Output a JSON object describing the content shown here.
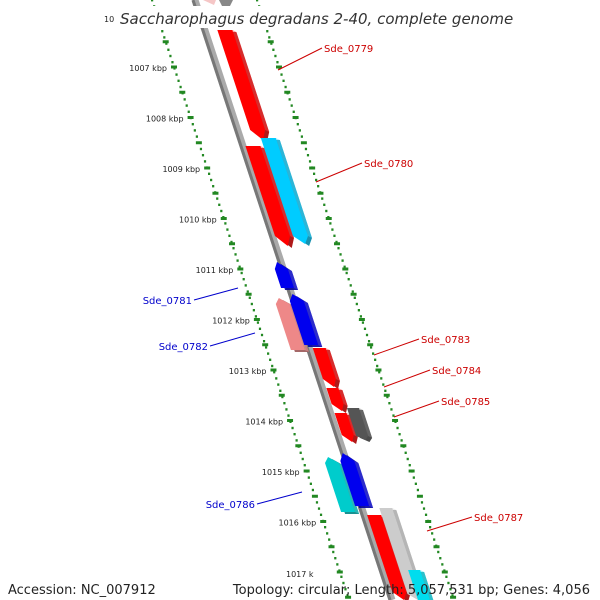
{
  "title": "Saccharophagus degradans 2-40, complete genome",
  "scale": {
    "unit": "kbp",
    "ticks": [
      "1007 kbp",
      "1008 kbp",
      "1009 kbp",
      "1010 kbp",
      "1011 kbp",
      "1012 kbp",
      "1013 kbp",
      "1014 kbp",
      "1015 kbp",
      "1016 kbp"
    ]
  },
  "genes": [
    {
      "label": "Sde_0779",
      "strand": "forward",
      "color": "#ff0000"
    },
    {
      "label": "Sde_0780",
      "strand": "forward",
      "color": "#00ccff"
    },
    {
      "label": "Sde_0781",
      "strand": "reverse",
      "color": "#0000ee"
    },
    {
      "label": "Sde_0782",
      "strand": "reverse",
      "color": "#ee8888"
    },
    {
      "label": "Sde_0783",
      "strand": "forward",
      "color": "#ff0000"
    },
    {
      "label": "Sde_0784",
      "strand": "forward",
      "color": "#ff0000"
    },
    {
      "label": "Sde_0785",
      "strand": "forward",
      "color": "#555555"
    },
    {
      "label": "Sde_0786",
      "strand": "reverse",
      "color": "#00cccc"
    },
    {
      "label": "Sde_0787",
      "strand": "forward",
      "color": "#ff0000"
    }
  ],
  "footer": {
    "accession": "Accession: NC_007912",
    "summary": "Topology: circular; Length: 5,057,531 bp; Genes: 4,056"
  },
  "colors": {
    "forward_label": "#cc0000",
    "reverse_label": "#0000cc",
    "scale_dots": "#228822",
    "backbone": "#888888"
  }
}
